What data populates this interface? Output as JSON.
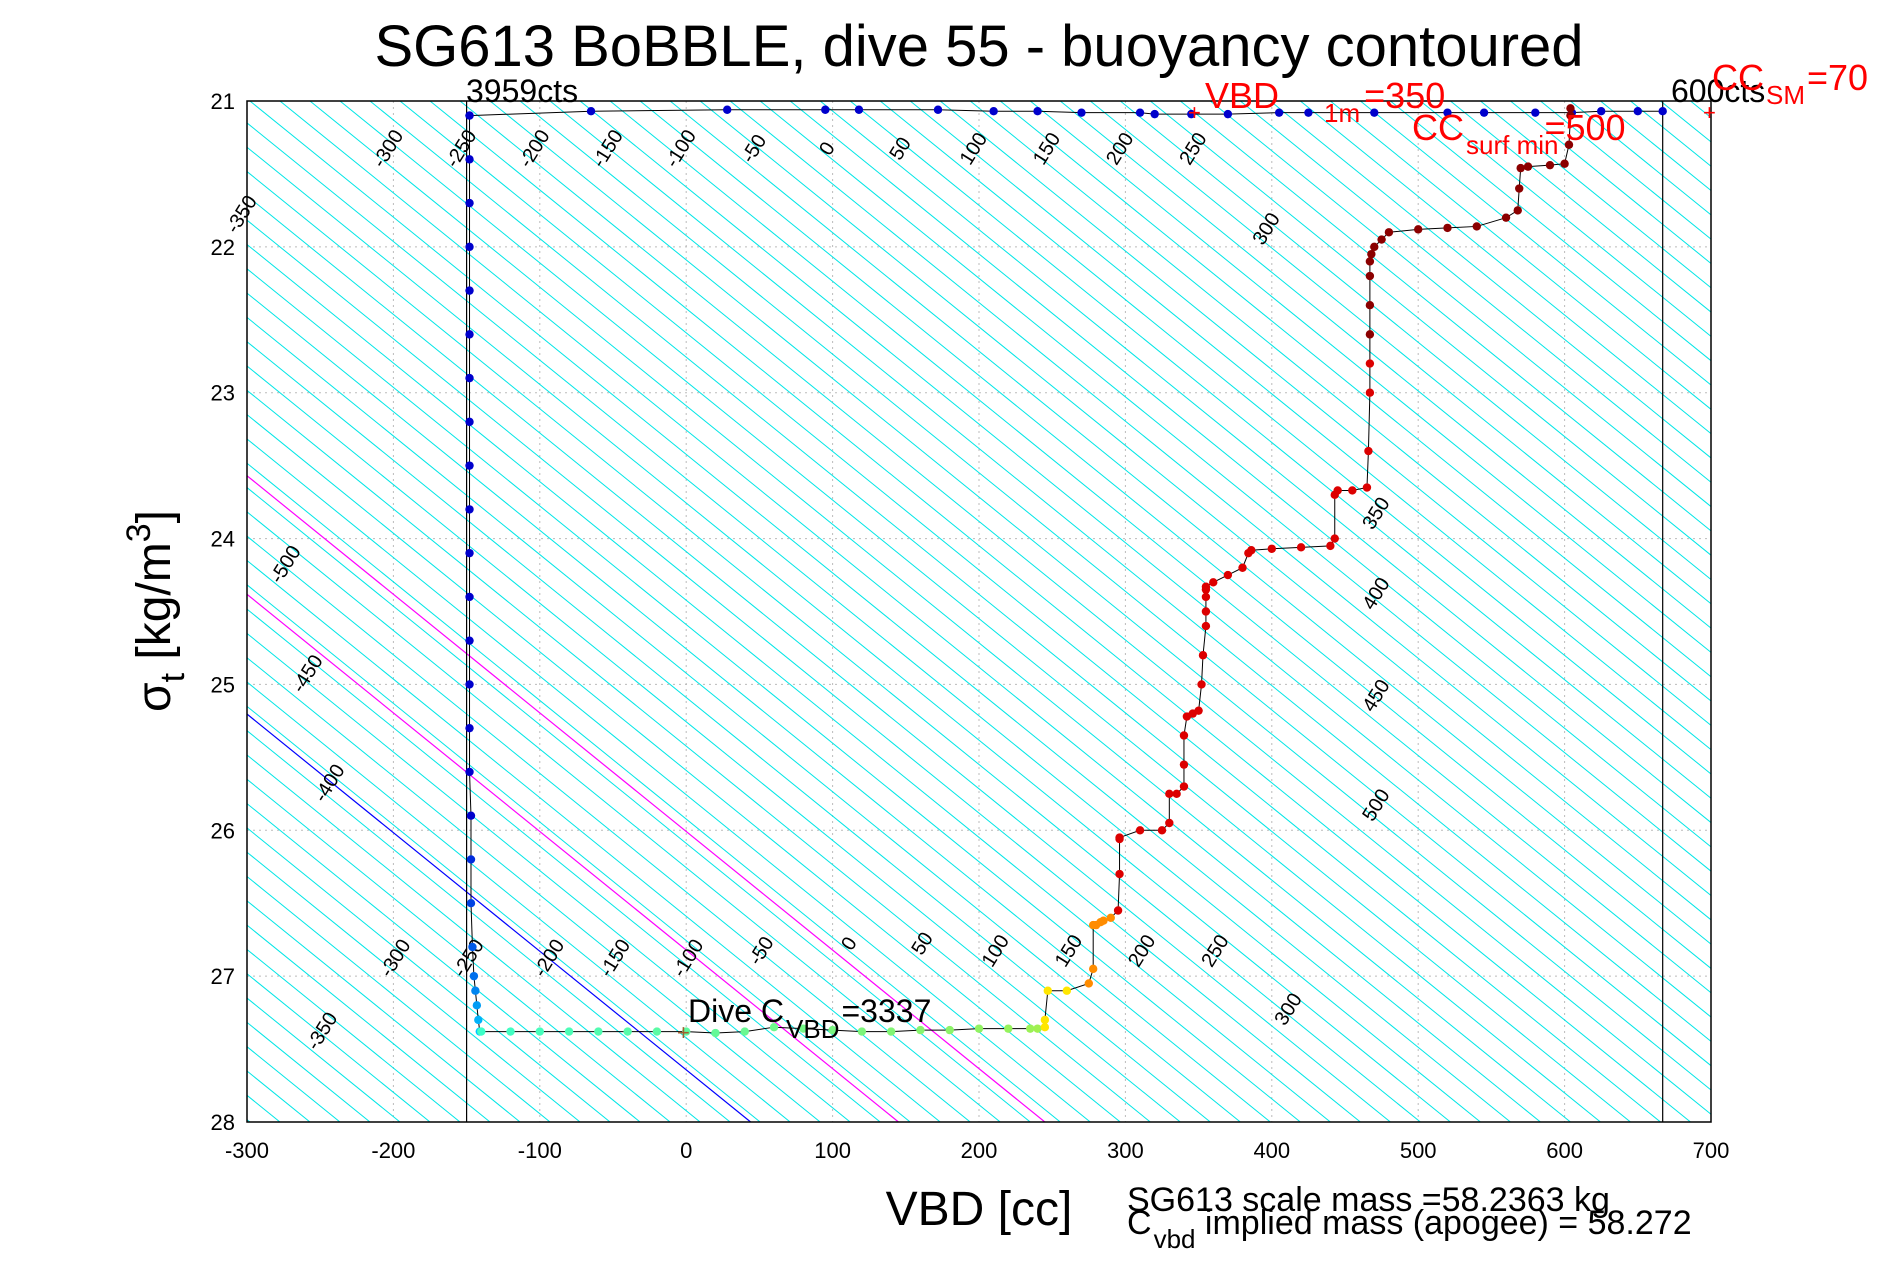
{
  "chart_data": {
    "type": "scatter",
    "title": "SG613 BoBBLE, dive 55 - buoyancy contoured",
    "xlabel": "VBD [cc]",
    "ylabel": "σ",
    "ylabel_sub": "t",
    "ylabel_unit_a": " [kg/m",
    "ylabel_unit_sup": "3",
    "ylabel_unit_b": "]",
    "xlim": [
      -300,
      700
    ],
    "ylim": [
      21,
      28
    ],
    "y_reversed": true,
    "grid": true,
    "xticks": [
      "-300",
      "-200",
      "-100",
      "0",
      "100",
      "200",
      "300",
      "400",
      "500",
      "600",
      "700"
    ],
    "yticks": [
      "21",
      "22",
      "23",
      "24",
      "25",
      "26",
      "27",
      "28"
    ],
    "vbd_min_x": -150,
    "vbd_max_x": 667,
    "contour_slope_cc_per_sigma": 123,
    "colors": {
      "contours": "#00e6e6",
      "zero_contour": "#0000ff",
      "magenta_contours": "#ff00ff",
      "dive_trace": "#0000cc",
      "climb_trace": "#8b0000",
      "annotation": "#ff0000"
    },
    "contour_labels": {
      "top": [
        {
          "text": "-350",
          "x": -300,
          "y": 21.8
        },
        {
          "text": "-300",
          "x": -200,
          "y": 21.35
        },
        {
          "text": "-250",
          "x": -150,
          "y": 21.35
        },
        {
          "text": "-200",
          "x": -100,
          "y": 21.35
        },
        {
          "text": "-150",
          "x": -50,
          "y": 21.35
        },
        {
          "text": "-100",
          "x": 0,
          "y": 21.35
        },
        {
          "text": "-50",
          "x": 50,
          "y": 21.35
        },
        {
          "text": "0",
          "x": 100,
          "y": 21.35
        },
        {
          "text": "50",
          "x": 150,
          "y": 21.35
        },
        {
          "text": "100",
          "x": 200,
          "y": 21.35
        },
        {
          "text": "150",
          "x": 250,
          "y": 21.35
        },
        {
          "text": "200",
          "x": 300,
          "y": 21.35
        },
        {
          "text": "250",
          "x": 350,
          "y": 21.35
        },
        {
          "text": "300",
          "x": 400,
          "y": 21.9
        }
      ],
      "right": [
        {
          "text": "350",
          "x": 475,
          "y": 23.85
        },
        {
          "text": "400",
          "x": 475,
          "y": 24.4
        },
        {
          "text": "450",
          "x": 475,
          "y": 25.1
        },
        {
          "text": "500",
          "x": 475,
          "y": 25.85
        }
      ],
      "left": [
        {
          "text": "-500",
          "x": -270,
          "y": 24.2
        },
        {
          "text": "-450",
          "x": -255,
          "y": 24.95
        },
        {
          "text": "-400",
          "x": -240,
          "y": 25.7
        },
        {
          "text": "-350",
          "x": -245,
          "y": 27.4
        },
        {
          "text": "-300",
          "x": -195,
          "y": 26.9
        }
      ],
      "bottom": [
        {
          "text": "-250",
          "x": -145,
          "y": 26.9
        },
        {
          "text": "-200",
          "x": -90,
          "y": 26.9
        },
        {
          "text": "-150",
          "x": -45,
          "y": 26.9
        },
        {
          "text": "-100",
          "x": 5,
          "y": 26.9
        },
        {
          "text": "-50",
          "x": 55,
          "y": 26.85
        },
        {
          "text": "0",
          "x": 115,
          "y": 26.8
        },
        {
          "text": "50",
          "x": 165,
          "y": 26.8
        },
        {
          "text": "100",
          "x": 215,
          "y": 26.85
        },
        {
          "text": "150",
          "x": 265,
          "y": 26.85
        },
        {
          "text": "200",
          "x": 315,
          "y": 26.85
        },
        {
          "text": "250",
          "x": 365,
          "y": 26.85
        },
        {
          "text": "300",
          "x": 415,
          "y": 27.25
        }
      ]
    },
    "dive_series": {
      "name": "dive",
      "x": [
        -148,
        -148,
        -148,
        -148,
        -148,
        -148,
        -148,
        -148,
        -148,
        -148,
        -148,
        -148,
        -148,
        -148,
        -148,
        -148,
        -147,
        -147,
        -147,
        -146,
        -145,
        -144,
        -143,
        -142,
        -141
      ],
      "y": [
        21.1,
        21.4,
        21.7,
        22.0,
        22.3,
        22.6,
        22.9,
        23.2,
        23.5,
        23.8,
        24.1,
        24.4,
        24.7,
        25.0,
        25.3,
        25.6,
        25.9,
        26.2,
        26.5,
        26.8,
        27.0,
        27.1,
        27.2,
        27.3,
        27.38
      ]
    },
    "bottom_series": {
      "name": "apogee",
      "x": [
        -140,
        -120,
        -100,
        -80,
        -60,
        -40,
        -20,
        0,
        20,
        40,
        60,
        80,
        100,
        120,
        140,
        160,
        180,
        200,
        220,
        235,
        240
      ],
      "y": [
        27.38,
        27.38,
        27.38,
        27.38,
        27.38,
        27.38,
        27.38,
        27.38,
        27.39,
        27.38,
        27.35,
        27.36,
        27.37,
        27.38,
        27.38,
        27.37,
        27.37,
        27.36,
        27.36,
        27.36,
        27.36
      ]
    },
    "climb_series": {
      "name": "climb",
      "x": [
        245,
        245,
        247,
        260,
        275,
        278,
        278,
        280,
        283,
        285,
        290,
        295,
        296,
        296,
        296,
        310,
        325,
        330,
        330,
        335,
        340,
        340,
        340,
        342,
        346,
        350,
        352,
        353,
        355,
        355,
        355,
        355,
        355,
        360,
        370,
        380,
        384,
        386,
        400,
        420,
        440,
        443,
        443,
        445,
        455,
        465,
        466,
        467,
        467,
        467,
        467,
        467,
        467,
        468,
        470,
        475,
        480,
        500,
        520,
        540,
        560,
        568,
        569,
        570,
        575,
        590,
        600,
        603,
        604,
        604
      ],
      "y": [
        27.35,
        27.3,
        27.1,
        27.1,
        27.05,
        26.95,
        26.65,
        26.65,
        26.63,
        26.62,
        26.6,
        26.55,
        26.3,
        26.06,
        26.05,
        26.0,
        26.0,
        25.95,
        25.75,
        25.75,
        25.7,
        25.55,
        25.35,
        25.22,
        25.2,
        25.18,
        25.0,
        24.8,
        24.6,
        24.5,
        24.4,
        24.35,
        24.33,
        24.3,
        24.25,
        24.2,
        24.1,
        24.08,
        24.07,
        24.06,
        24.05,
        24.0,
        23.7,
        23.67,
        23.67,
        23.65,
        23.4,
        23.0,
        22.8,
        22.6,
        22.4,
        22.2,
        22.1,
        22.05,
        22.0,
        21.95,
        21.9,
        21.88,
        21.87,
        21.86,
        21.8,
        21.75,
        21.6,
        21.46,
        21.45,
        21.44,
        21.43,
        21.3,
        21.1,
        21.05
      ]
    },
    "surface_series": {
      "name": "surface",
      "x": [
        -148,
        -65,
        28,
        95,
        118,
        172,
        210,
        240,
        270,
        310,
        320,
        345,
        370,
        405,
        425,
        470,
        520,
        545,
        580,
        605,
        625,
        650,
        667
      ],
      "y": [
        21.1,
        21.07,
        21.06,
        21.06,
        21.06,
        21.06,
        21.07,
        21.07,
        21.08,
        21.08,
        21.09,
        21.09,
        21.09,
        21.08,
        21.08,
        21.08,
        21.08,
        21.08,
        21.08,
        21.08,
        21.07,
        21.07,
        21.07
      ]
    },
    "annotations": {
      "cts_min": "3959cts",
      "cts_max": "600cts",
      "vbd_1m_a": "VBD",
      "vbd_1m_sub": "1m",
      "vbd_1m_b": "=350",
      "cc_surf_a": "CC",
      "cc_surf_sub": "surf min",
      "cc_surf_b": "=500",
      "cc_sm_a": "CC",
      "cc_sm_sub": "SM",
      "cc_sm_b": "=70",
      "dive_c_a": "Dive C",
      "dive_c_sub": "VBD",
      "dive_c_b": "=3337",
      "scale_mass": "SG613 scale mass =58.2363 kg",
      "implied_a": "C",
      "implied_sub": "vbd",
      "implied_b": " implied mass (apogee) = 58.272"
    }
  }
}
